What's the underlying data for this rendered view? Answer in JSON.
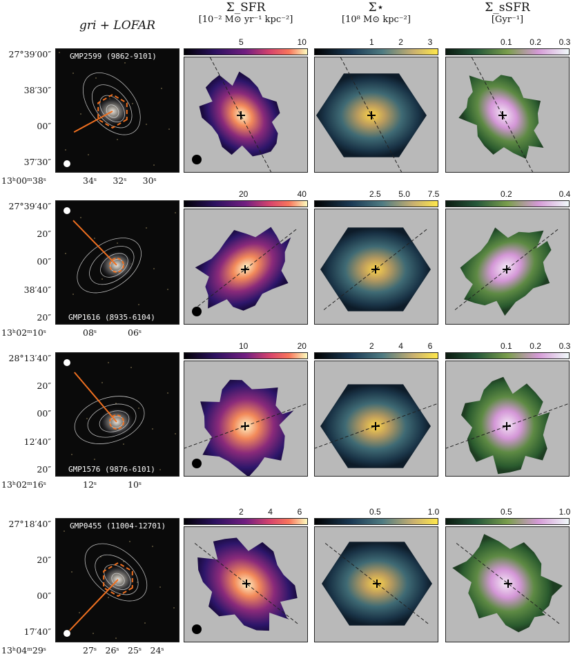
{
  "headers": {
    "optical": "gri + LOFAR",
    "sfr": {
      "l1": "Σ_SFR",
      "l2": "[10⁻² M⊙ yr⁻¹ kpc⁻²]"
    },
    "mass": {
      "l1": "Σ⋆",
      "l2": "[10⁸ M⊙ kpc⁻²]"
    },
    "ssfr": {
      "l1": "Σ_sSFR",
      "l2": "[Gyr⁻¹]"
    }
  },
  "rows": [
    {
      "galaxy": "GMP2599 (9862-9101)",
      "yticks": [
        "27°39′00″",
        "38′30″",
        "00″",
        "37′30″"
      ],
      "xticks": [
        "13ʰ00ᵐ38ˢ",
        "34ˢ",
        "32ˢ",
        "30ˢ"
      ],
      "sfr_ticks": [
        "5",
        "10"
      ],
      "mass_ticks": [
        "1",
        "2",
        "3"
      ],
      "ssfr_ticks": [
        "0.1",
        "0.2",
        "0.3"
      ]
    },
    {
      "galaxy": "GMP1616 (8935-6104)",
      "yticks": [
        "27°39′40″",
        "20″",
        "00″",
        "38′40″",
        "20″"
      ],
      "xticks": [
        "13ʰ02ᵐ10ˢ",
        "08ˢ",
        "06ˢ"
      ],
      "sfr_ticks": [
        "20",
        "40"
      ],
      "mass_ticks": [
        "2.5",
        "5.0",
        "7.5"
      ],
      "ssfr_ticks": [
        "0.2",
        "0.4"
      ]
    },
    {
      "galaxy": "GMP1576 (9876-6101)",
      "yticks": [
        "28°13′40″",
        "20″",
        "00″",
        "12′40″",
        "20″"
      ],
      "xticks": [
        "13ʰ02ᵐ16ˢ",
        "12ˢ",
        "10ˢ"
      ],
      "sfr_ticks": [
        "10",
        "20"
      ],
      "mass_ticks": [
        "2",
        "4",
        "6"
      ],
      "ssfr_ticks": [
        "0.1",
        "0.2",
        "0.3"
      ]
    },
    {
      "galaxy": "GMP0455 (11004-12701)",
      "yticks": [
        "27°18′40″",
        "20″",
        "00″",
        "17′40″"
      ],
      "xticks": [
        "13ʰ04ᵐ29ˢ",
        "27ˢ",
        "26ˢ",
        "25ˢ",
        "24ˢ"
      ],
      "sfr_ticks": [
        "2",
        "4",
        "6"
      ],
      "mass_ticks": [
        "0.5",
        "1.0"
      ],
      "ssfr_ticks": [
        "0.5",
        "1.0"
      ]
    }
  ],
  "colors": {
    "background_gray": "#b9b9b9",
    "radio_tail_arrow": "#f07020",
    "contours": "#dddddd"
  }
}
